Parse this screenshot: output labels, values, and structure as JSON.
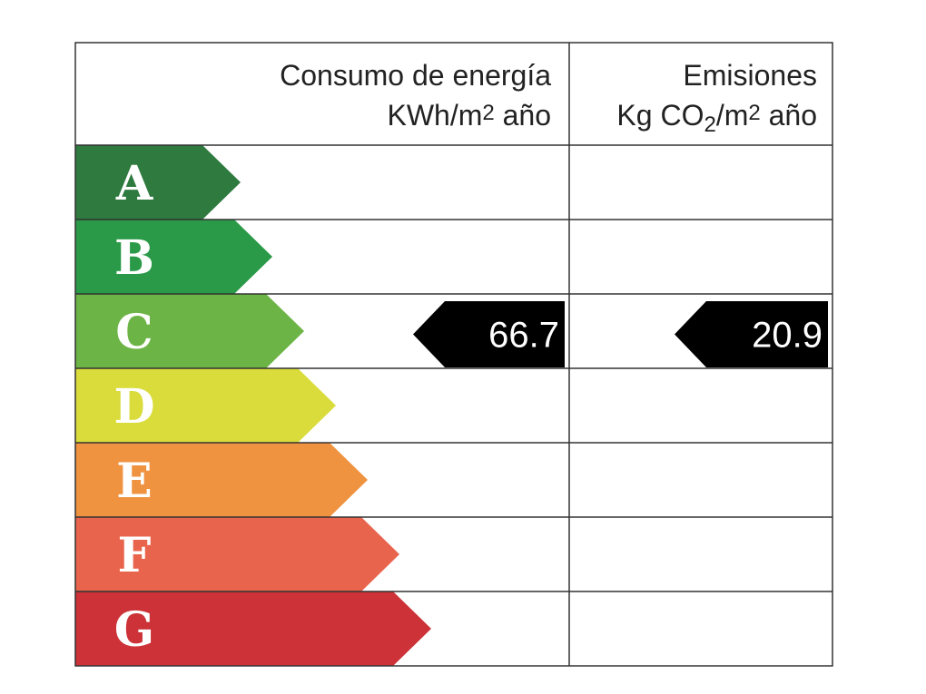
{
  "header": {
    "consumption": {
      "line1": "Consumo de energía",
      "line2": [
        "KWh/m",
        "2",
        " año"
      ]
    },
    "emissions": {
      "line1": "Emisiones",
      "line2": [
        "Kg CO",
        "2",
        "/m",
        "2",
        " año"
      ]
    }
  },
  "classes": [
    {
      "letter": "A",
      "color": "#2e7a3f"
    },
    {
      "letter": "B",
      "color": "#2a9a48"
    },
    {
      "letter": "C",
      "color": "#6bb445"
    },
    {
      "letter": "D",
      "color": "#d9dc3b"
    },
    {
      "letter": "E",
      "color": "#ef9341"
    },
    {
      "letter": "F",
      "color": "#e9644c"
    },
    {
      "letter": "G",
      "color": "#cc3237"
    }
  ],
  "consumption": {
    "class": "C",
    "value": 66.7
  },
  "emissions": {
    "class": "C",
    "value": 20.9
  }
}
